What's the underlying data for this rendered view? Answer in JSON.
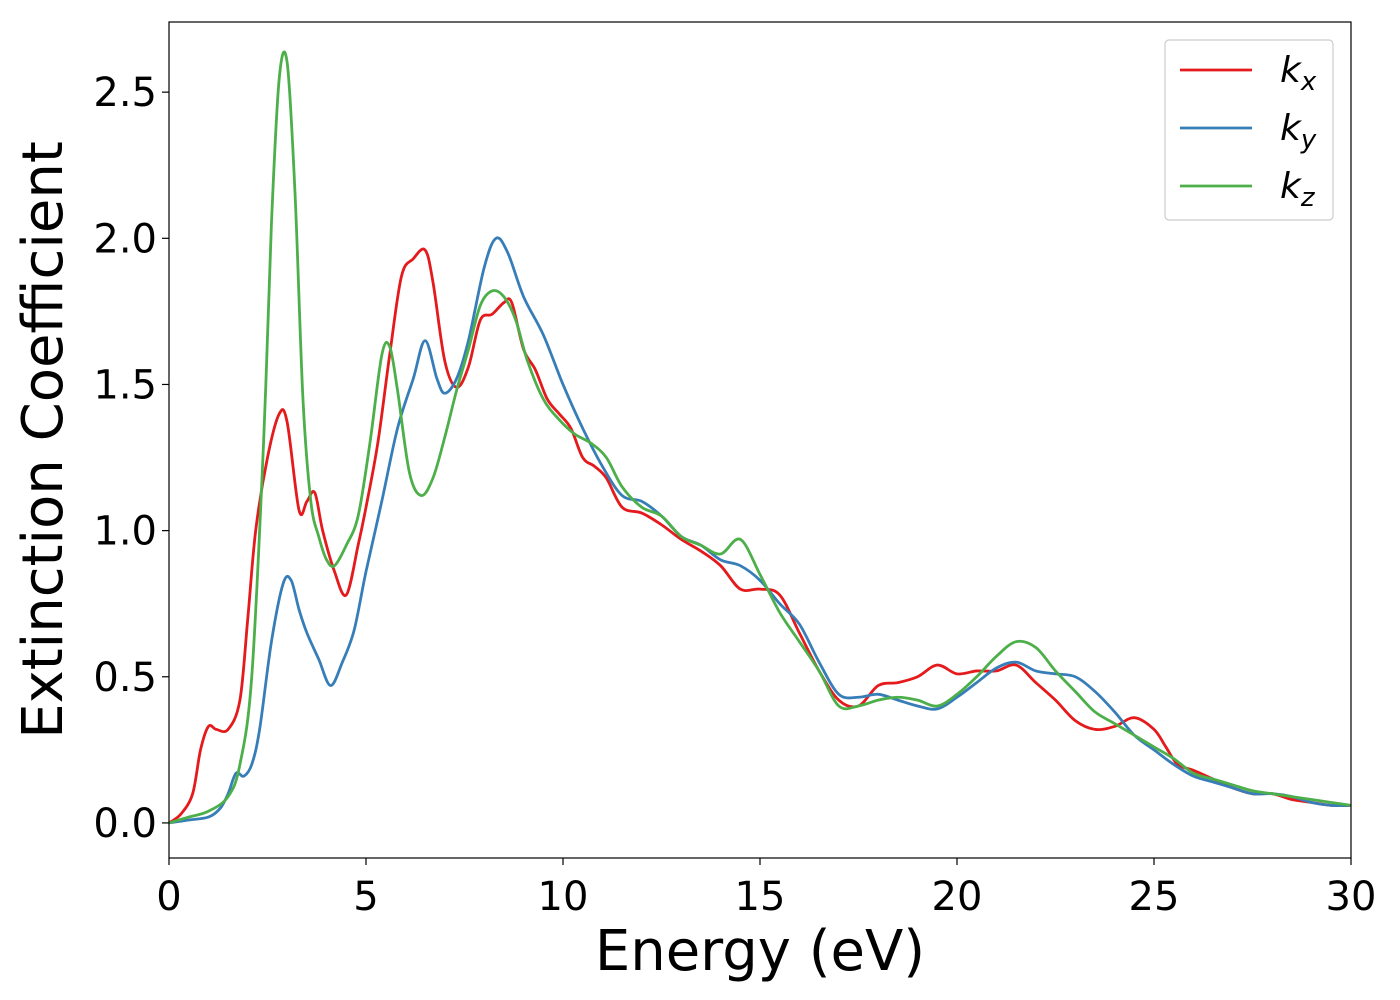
{
  "chart_data": {
    "type": "line",
    "title": "",
    "xlabel": "Energy (eV)",
    "ylabel": "Extinction Coefficient",
    "xlim": [
      0,
      30
    ],
    "ylim": [
      -0.12,
      2.74
    ],
    "xticks": [
      0,
      5,
      10,
      15,
      20,
      25,
      30
    ],
    "yticks": [
      0.0,
      0.5,
      1.0,
      1.5,
      2.0,
      2.5
    ],
    "xtick_labels": [
      "0",
      "5",
      "10",
      "15",
      "20",
      "25",
      "30"
    ],
    "ytick_labels": [
      "0.0",
      "0.5",
      "1.0",
      "1.5",
      "2.0",
      "2.5"
    ],
    "grid": false,
    "legend_position": "top-right",
    "series": [
      {
        "name": "k_x",
        "label_main": "k",
        "label_sub": "x",
        "color": "#e41a1c",
        "x": [
          0,
          0.3,
          0.6,
          0.8,
          1.0,
          1.2,
          1.5,
          1.8,
          2.0,
          2.2,
          2.5,
          2.8,
          3.0,
          3.3,
          3.5,
          3.7,
          3.9,
          4.2,
          4.5,
          4.8,
          5.0,
          5.3,
          5.6,
          5.9,
          6.2,
          6.5,
          6.7,
          7.0,
          7.3,
          7.6,
          7.9,
          8.2,
          8.5,
          8.7,
          9.0,
          9.3,
          9.6,
          9.9,
          10.2,
          10.5,
          10.8,
          11.1,
          11.5,
          12.0,
          12.5,
          13.0,
          13.5,
          14.0,
          14.5,
          15.0,
          15.5,
          16.0,
          16.5,
          17.0,
          17.5,
          18.0,
          18.5,
          19.0,
          19.5,
          20.0,
          20.5,
          21.0,
          21.5,
          22.0,
          22.5,
          23.0,
          23.5,
          24.0,
          24.5,
          25.0,
          25.3,
          25.6,
          26.0,
          26.5,
          27.0,
          27.5,
          28.0,
          28.5,
          29.0,
          29.5,
          30.0
        ],
        "y": [
          0.0,
          0.03,
          0.1,
          0.25,
          0.33,
          0.32,
          0.32,
          0.42,
          0.7,
          1.0,
          1.25,
          1.4,
          1.37,
          1.07,
          1.1,
          1.13,
          1.0,
          0.86,
          0.78,
          0.95,
          1.08,
          1.3,
          1.6,
          1.87,
          1.93,
          1.96,
          1.85,
          1.58,
          1.49,
          1.56,
          1.72,
          1.74,
          1.78,
          1.78,
          1.62,
          1.55,
          1.45,
          1.4,
          1.35,
          1.25,
          1.22,
          1.18,
          1.08,
          1.06,
          1.02,
          0.97,
          0.93,
          0.88,
          0.8,
          0.8,
          0.78,
          0.65,
          0.52,
          0.42,
          0.4,
          0.47,
          0.48,
          0.5,
          0.54,
          0.51,
          0.52,
          0.52,
          0.54,
          0.48,
          0.42,
          0.35,
          0.32,
          0.33,
          0.36,
          0.32,
          0.26,
          0.2,
          0.18,
          0.15,
          0.12,
          0.1,
          0.1,
          0.08,
          0.07,
          0.06,
          0.06
        ]
      },
      {
        "name": "k_y",
        "label_main": "k",
        "label_sub": "y",
        "color": "#377eb8",
        "x": [
          0,
          0.5,
          1.0,
          1.3,
          1.5,
          1.7,
          1.9,
          2.1,
          2.3,
          2.6,
          2.9,
          3.1,
          3.3,
          3.5,
          3.8,
          4.1,
          4.4,
          4.7,
          5.0,
          5.4,
          5.8,
          6.2,
          6.5,
          6.8,
          7.0,
          7.3,
          7.6,
          8.0,
          8.3,
          8.6,
          9.0,
          9.5,
          10.0,
          10.5,
          11.0,
          11.5,
          12.0,
          12.5,
          13.0,
          13.5,
          14.0,
          14.5,
          15.0,
          15.5,
          16.0,
          16.5,
          17.0,
          17.5,
          18.0,
          18.5,
          19.0,
          19.5,
          20.0,
          20.5,
          21.0,
          21.5,
          22.0,
          22.5,
          23.0,
          23.5,
          24.0,
          24.5,
          25.0,
          25.5,
          26.0,
          26.5,
          27.0,
          27.5,
          28.0,
          28.5,
          29.0,
          29.5,
          30.0
        ],
        "y": [
          0.0,
          0.01,
          0.02,
          0.05,
          0.1,
          0.17,
          0.16,
          0.2,
          0.32,
          0.62,
          0.82,
          0.83,
          0.73,
          0.65,
          0.56,
          0.47,
          0.55,
          0.66,
          0.86,
          1.1,
          1.35,
          1.52,
          1.65,
          1.52,
          1.47,
          1.52,
          1.65,
          1.9,
          2.0,
          1.95,
          1.8,
          1.67,
          1.5,
          1.35,
          1.22,
          1.12,
          1.1,
          1.05,
          0.98,
          0.95,
          0.9,
          0.88,
          0.83,
          0.75,
          0.68,
          0.55,
          0.44,
          0.43,
          0.44,
          0.42,
          0.4,
          0.39,
          0.43,
          0.48,
          0.53,
          0.55,
          0.52,
          0.51,
          0.5,
          0.45,
          0.38,
          0.3,
          0.25,
          0.2,
          0.16,
          0.14,
          0.12,
          0.1,
          0.1,
          0.09,
          0.07,
          0.06,
          0.06
        ]
      },
      {
        "name": "k_z",
        "label_main": "k",
        "label_sub": "z",
        "color": "#4daf4a",
        "x": [
          0,
          0.5,
          1.0,
          1.5,
          1.8,
          2.1,
          2.4,
          2.6,
          2.8,
          3.0,
          3.2,
          3.4,
          3.6,
          3.8,
          4.0,
          4.2,
          4.5,
          4.8,
          5.1,
          5.4,
          5.6,
          5.8,
          6.1,
          6.4,
          6.7,
          7.0,
          7.3,
          7.6,
          7.9,
          8.2,
          8.5,
          8.8,
          9.1,
          9.5,
          9.9,
          10.3,
          10.7,
          11.1,
          11.5,
          12.0,
          12.5,
          13.0,
          13.5,
          14.0,
          14.5,
          15.0,
          15.5,
          16.0,
          16.5,
          17.0,
          17.5,
          18.0,
          18.5,
          19.0,
          19.5,
          20.0,
          20.5,
          21.0,
          21.5,
          22.0,
          22.5,
          23.0,
          23.5,
          24.0,
          24.5,
          25.0,
          25.5,
          26.0,
          26.5,
          27.0,
          27.5,
          28.0,
          28.5,
          29.0,
          29.5,
          30.0
        ],
        "y": [
          0.0,
          0.02,
          0.04,
          0.09,
          0.2,
          0.5,
          1.3,
          2.05,
          2.55,
          2.6,
          2.15,
          1.45,
          1.1,
          0.98,
          0.9,
          0.88,
          0.95,
          1.05,
          1.3,
          1.6,
          1.63,
          1.48,
          1.2,
          1.12,
          1.18,
          1.32,
          1.48,
          1.62,
          1.77,
          1.82,
          1.8,
          1.72,
          1.58,
          1.45,
          1.38,
          1.33,
          1.3,
          1.25,
          1.15,
          1.08,
          1.05,
          0.98,
          0.95,
          0.92,
          0.97,
          0.85,
          0.72,
          0.62,
          0.52,
          0.4,
          0.4,
          0.42,
          0.43,
          0.42,
          0.4,
          0.44,
          0.5,
          0.57,
          0.62,
          0.6,
          0.52,
          0.45,
          0.38,
          0.34,
          0.3,
          0.26,
          0.22,
          0.17,
          0.15,
          0.13,
          0.11,
          0.1,
          0.09,
          0.08,
          0.07,
          0.06
        ]
      }
    ]
  }
}
